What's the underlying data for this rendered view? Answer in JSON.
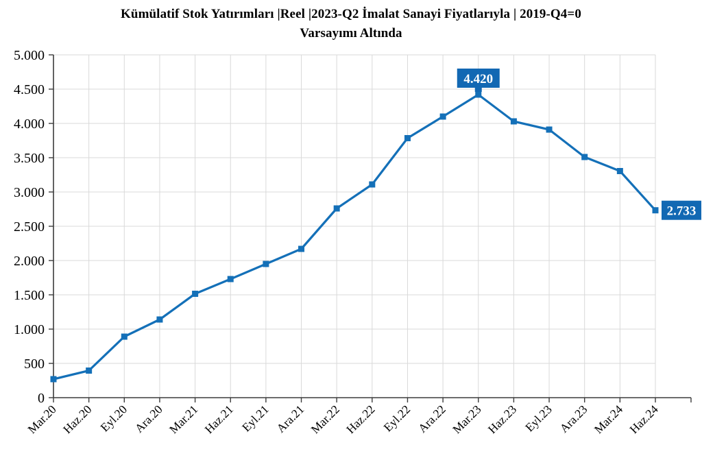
{
  "title": {
    "line1": "Kümülatif Stok Yatırımları |Reel |2023-Q2 İmalat Sanayi Fiyatlarıyla | 2019-Q4=0",
    "line2": "Varsayımı Altında"
  },
  "chart_data": {
    "type": "line",
    "categories": [
      "Mar.20",
      "Haz.20",
      "Eyl.20",
      "Ara.20",
      "Mar.21",
      "Haz.21",
      "Eyl.21",
      "Ara.21",
      "Mar.22",
      "Haz.22",
      "Eyl.22",
      "Ara.22",
      "Mar.23",
      "Haz.23",
      "Eyl.23",
      "Ara.23",
      "Mar.24",
      "Haz.24"
    ],
    "values": [
      270,
      395,
      890,
      1140,
      1515,
      1730,
      1950,
      2170,
      2760,
      3110,
      3785,
      4100,
      4420,
      4030,
      3910,
      3510,
      3305,
      2733
    ],
    "y_tick_labels": [
      "0",
      "500",
      "1.000",
      "1.500",
      "2.000",
      "2.500",
      "3.000",
      "3.500",
      "4.000",
      "4.500",
      "5.000"
    ],
    "ylim": [
      0,
      5000
    ],
    "y_step": 500,
    "grid": true,
    "legend": "none",
    "marker": "square",
    "data_labels": [
      {
        "index": 12,
        "text": "4.420",
        "position": "above"
      },
      {
        "index": 17,
        "text": "2.733",
        "position": "right"
      }
    ],
    "colors": {
      "line": "#1470B8",
      "label_box": "#1268B3",
      "label_text": "#FFFFFF",
      "grid": "#D9D9D9",
      "axis": "#3B3B3B",
      "tick_text": "#000000"
    }
  }
}
